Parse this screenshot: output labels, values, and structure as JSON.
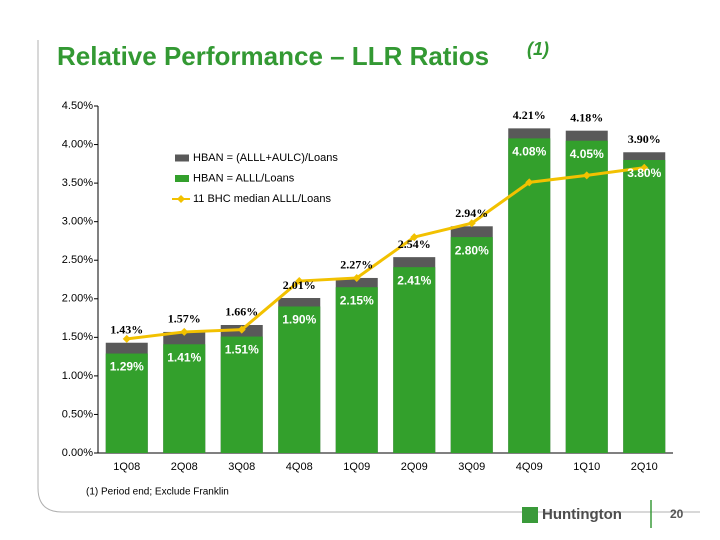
{
  "chart_data": {
    "type": "bar",
    "title": "Relative Performance – LLR Ratios",
    "title_note": "(1)",
    "footnote": "(1)  Period end; Exclude Franklin",
    "categories": [
      "1Q08",
      "2Q08",
      "3Q08",
      "4Q08",
      "1Q09",
      "2Q09",
      "3Q09",
      "4Q09",
      "1Q10",
      "2Q10"
    ],
    "series": [
      {
        "name": "HBAN = (ALLL+AULC)/Loans",
        "type": "bar",
        "color": "#595959",
        "values": [
          1.43,
          1.57,
          1.66,
          2.01,
          2.27,
          2.54,
          2.94,
          4.21,
          4.18,
          3.9
        ],
        "value_labels": [
          "1.43%",
          "1.57%",
          "1.66%",
          "2.01%",
          "2.27%",
          "2.54%",
          "2.94%",
          "4.21%",
          "4.18%",
          "3.90%"
        ]
      },
      {
        "name": "HBAN = ALLL/Loans",
        "type": "bar",
        "color": "#33a02c",
        "values": [
          1.29,
          1.41,
          1.51,
          1.9,
          2.15,
          2.41,
          2.8,
          4.08,
          4.05,
          3.8
        ],
        "value_labels": [
          "1.29%",
          "1.41%",
          "1.51%",
          "1.90%",
          "2.15%",
          "2.41%",
          "2.80%",
          "4.08%",
          "4.05%",
          "3.80%"
        ]
      },
      {
        "name": "11 BHC median ALLL/Loans",
        "type": "line",
        "color": "#f2c100",
        "values": [
          1.48,
          1.57,
          1.6,
          2.23,
          2.27,
          2.8,
          2.98,
          3.51,
          3.6,
          3.7
        ]
      }
    ],
    "ylim": [
      0,
      4.5
    ],
    "yticks": [
      {
        "value": 0,
        "label": "0.00%"
      },
      {
        "value": 0.5,
        "label": "0.50%"
      },
      {
        "value": 1,
        "label": "1.00%"
      },
      {
        "value": 1.5,
        "label": "1.50%"
      },
      {
        "value": 2,
        "label": "2.00%"
      },
      {
        "value": 2.5,
        "label": "2.50%"
      },
      {
        "value": 3,
        "label": "3.00%"
      },
      {
        "value": 3.5,
        "label": "3.50%"
      },
      {
        "value": 4,
        "label": "4.00%"
      },
      {
        "value": 4.5,
        "label": "4.50%"
      }
    ],
    "grid": false
  },
  "slide": {
    "page_number": "20",
    "logo": "Huntington"
  }
}
